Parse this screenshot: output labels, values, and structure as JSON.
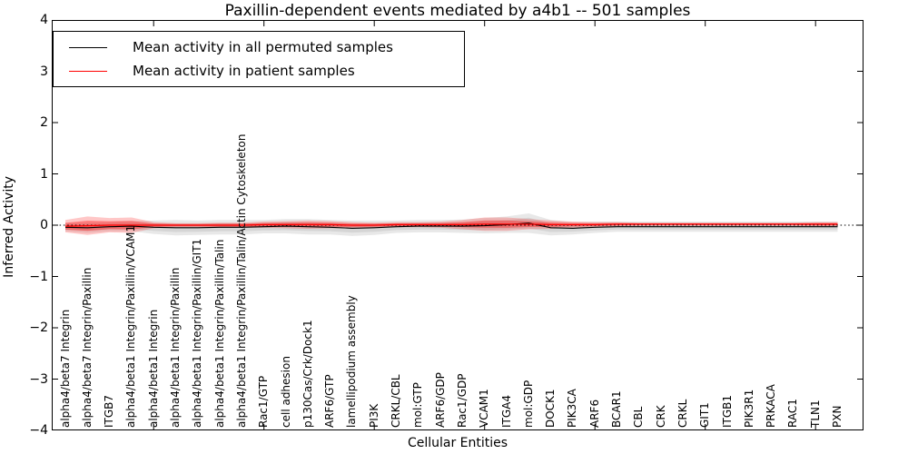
{
  "chart_data": {
    "type": "line",
    "title": "Paxillin-dependent events mediated by a4b1 -- 501 samples",
    "xlabel": "Cellular Entities",
    "ylabel": "Inferred Activity",
    "ylim": [
      -4,
      4
    ],
    "yticks": [
      4,
      3,
      2,
      1,
      0,
      -1,
      -2,
      -3,
      -4
    ],
    "x_major_tick_indices": [
      4,
      9,
      14,
      19,
      24,
      29,
      34
    ],
    "grid": false,
    "zero_line": true,
    "legend_position": "upper left",
    "categories": [
      "alpha4/beta7 Integrin",
      "alpha4/beta7 Integrin/Paxillin",
      "ITGB7",
      "alpha4/beta1 Integrin/Paxillin/VCAM1",
      "alpha4/beta1 Integrin",
      "alpha4/beta1 Integrin/Paxillin",
      "alpha4/beta1 Integrin/Paxillin/GIT1",
      "alpha4/beta1 Integrin/Paxillin/Talin",
      "alpha4/beta1 Integrin/Paxillin/Talin/Actin Cytoskeleton",
      "Rac1/GTP",
      "cell adhesion",
      "p130Cas/Crk/Dock1",
      "ARF6/GTP",
      "lamellipodium assembly",
      "PI3K",
      "CRKL/CBL",
      "mol:GTP",
      "ARF6/GDP",
      "Rac1/GDP",
      "VCAM1",
      "ITGA4",
      "mol:GDP",
      "DOCK1",
      "PIK3CA",
      "ARF6",
      "BCAR1",
      "CBL",
      "CRK",
      "CRKL",
      "GIT1",
      "ITGB1",
      "PIK3R1",
      "PRKACA",
      "RAC1",
      "TLN1",
      "PXN"
    ],
    "series": [
      {
        "name": "Mean activity in all permuted samples",
        "color": "#000000",
        "values": [
          -0.04,
          -0.05,
          -0.03,
          -0.02,
          -0.04,
          -0.05,
          -0.05,
          -0.04,
          -0.04,
          -0.03,
          -0.02,
          -0.03,
          -0.04,
          -0.06,
          -0.05,
          -0.03,
          -0.02,
          -0.02,
          -0.02,
          -0.01,
          0.01,
          0.04,
          -0.05,
          -0.06,
          -0.04,
          -0.03,
          -0.03,
          -0.03,
          -0.03,
          -0.03,
          -0.03,
          -0.03,
          -0.03,
          -0.03,
          -0.03,
          -0.03
        ],
        "std": [
          0.08,
          0.1,
          0.09,
          0.1,
          0.13,
          0.15,
          0.14,
          0.14,
          0.14,
          0.13,
          0.14,
          0.15,
          0.14,
          0.15,
          0.14,
          0.12,
          0.12,
          0.12,
          0.13,
          0.15,
          0.16,
          0.19,
          0.15,
          0.12,
          0.11,
          0.1,
          0.1,
          0.1,
          0.1,
          0.1,
          0.1,
          0.1,
          0.1,
          0.1,
          0.1,
          0.1
        ]
      },
      {
        "name": "Mean activity in patient samples",
        "color": "#ff0000",
        "values": [
          -0.02,
          -0.01,
          0.0,
          0.0,
          0.0,
          0.0,
          0.0,
          0.0,
          0.0,
          0.01,
          0.01,
          0.01,
          0.01,
          0.0,
          0.0,
          0.01,
          0.01,
          0.01,
          0.01,
          0.02,
          0.02,
          0.02,
          0.01,
          0.01,
          0.01,
          0.02,
          0.02,
          0.02,
          0.02,
          0.02,
          0.02,
          0.02,
          0.02,
          0.02,
          0.02,
          0.02
        ],
        "std": [
          0.12,
          0.18,
          0.14,
          0.15,
          0.06,
          0.04,
          0.04,
          0.05,
          0.05,
          0.06,
          0.07,
          0.08,
          0.07,
          0.06,
          0.05,
          0.05,
          0.05,
          0.06,
          0.09,
          0.13,
          0.13,
          0.1,
          0.08,
          0.06,
          0.05,
          0.04,
          0.03,
          0.03,
          0.03,
          0.03,
          0.03,
          0.03,
          0.03,
          0.03,
          0.04,
          0.04
        ]
      }
    ]
  },
  "colors": {
    "permuted_band": "#808080",
    "patient_band": "#ff0000",
    "axis": "#000000",
    "background": "#ffffff"
  }
}
